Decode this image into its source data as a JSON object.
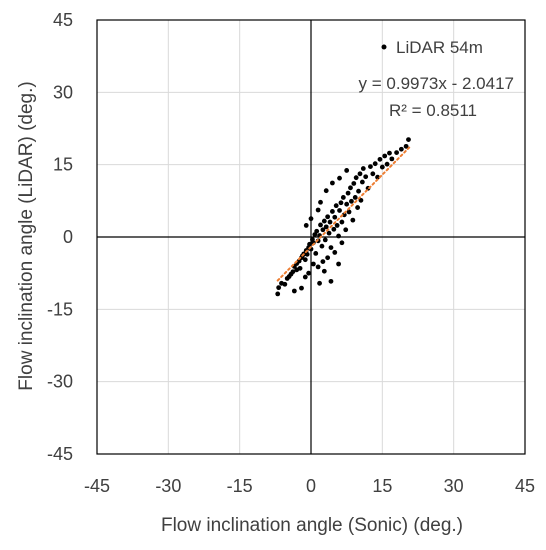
{
  "chart_data": {
    "type": "scatter",
    "title": "",
    "xlabel": "Flow inclination angle (Sonic) (deg.)",
    "ylabel": "Flow inclination angle (LiDAR) (deg.)",
    "xlim": [
      -45,
      45
    ],
    "ylim": [
      -45,
      45
    ],
    "xticks": [
      -45,
      -30,
      -15,
      0,
      15,
      30,
      45
    ],
    "yticks": [
      -45,
      -30,
      -15,
      0,
      15,
      30,
      45
    ],
    "grid": true,
    "legend_position": "top-right",
    "series": [
      {
        "name": "LiDAR 54m",
        "color": "#000000",
        "points": [
          [
            -7,
            -11.8
          ],
          [
            -6.8,
            -10.5
          ],
          [
            -6.2,
            -9.6
          ],
          [
            -5.5,
            -9.8
          ],
          [
            -5,
            -8.6
          ],
          [
            -4.6,
            -8.2
          ],
          [
            -4.2,
            -7.7
          ],
          [
            -3.8,
            -7.2
          ],
          [
            -3.5,
            -6.1
          ],
          [
            -3,
            -6.8
          ],
          [
            -3,
            -5.5
          ],
          [
            -2.5,
            -5
          ],
          [
            -2.3,
            -6.5
          ],
          [
            -2,
            -4.3
          ],
          [
            -1.8,
            -3.9
          ],
          [
            -1.5,
            -3.5
          ],
          [
            -1.2,
            -4.7
          ],
          [
            -1,
            -2.8
          ],
          [
            -0.8,
            -3.6
          ],
          [
            -0.5,
            -2.2
          ],
          [
            -0.3,
            -1.5
          ],
          [
            0,
            -2.5
          ],
          [
            0.3,
            -0.5
          ],
          [
            0.5,
            -1.2
          ],
          [
            0.8,
            0.5
          ],
          [
            1,
            -3.4
          ],
          [
            1.2,
            1.2
          ],
          [
            1.5,
            -0.8
          ],
          [
            1.8,
            0.3
          ],
          [
            2,
            2.5
          ],
          [
            2.3,
            -1.9
          ],
          [
            2.5,
            1.5
          ],
          [
            2.8,
            3.3
          ],
          [
            3,
            -0.6
          ],
          [
            3.2,
            2.1
          ],
          [
            3.5,
            4.2
          ],
          [
            3.8,
            0.8
          ],
          [
            4,
            3.1
          ],
          [
            4.2,
            -2.2
          ],
          [
            4.5,
            5.3
          ],
          [
            4.8,
            1.6
          ],
          [
            5,
            4.1
          ],
          [
            5.3,
            6.5
          ],
          [
            5.5,
            2.4
          ],
          [
            5.8,
            0.2
          ],
          [
            6,
            5.5
          ],
          [
            6.3,
            7.1
          ],
          [
            6.5,
            3.1
          ],
          [
            6.8,
            8.2
          ],
          [
            7,
            4.6
          ],
          [
            7.3,
            1.5
          ],
          [
            7.5,
            6.8
          ],
          [
            7.8,
            9.1
          ],
          [
            8,
            5.2
          ],
          [
            8.3,
            10.2
          ],
          [
            8.5,
            7.4
          ],
          [
            8.8,
            3.5
          ],
          [
            9,
            11.1
          ],
          [
            9.3,
            8.2
          ],
          [
            9.5,
            12.3
          ],
          [
            9.8,
            6.1
          ],
          [
            10,
            9.5
          ],
          [
            10.3,
            13.1
          ],
          [
            10.5,
            7.6
          ],
          [
            10.8,
            11.4
          ],
          [
            11,
            14.2
          ],
          [
            11.5,
            12.5
          ],
          [
            12,
            10.1
          ],
          [
            12.5,
            14.6
          ],
          [
            13,
            13.1
          ],
          [
            13.5,
            15.2
          ],
          [
            14,
            12.4
          ],
          [
            14.5,
            16.1
          ],
          [
            15,
            14.5
          ],
          [
            15.5,
            16.8
          ],
          [
            16,
            15.1
          ],
          [
            16.5,
            17.4
          ],
          [
            17,
            16.2
          ],
          [
            18,
            17.5
          ],
          [
            19,
            18.2
          ],
          [
            20,
            18.8
          ],
          [
            20.5,
            20.2
          ],
          [
            0.5,
            -5.6
          ],
          [
            1.5,
            -6.2
          ],
          [
            2.5,
            -5.1
          ],
          [
            3.5,
            -4.3
          ],
          [
            5,
            -3.2
          ],
          [
            6.5,
            -1.2
          ],
          [
            -3.5,
            -11.2
          ],
          [
            -2,
            -10.6
          ],
          [
            -1.2,
            -8.3
          ],
          [
            1.8,
            -9.6
          ],
          [
            -0.5,
            -7.5
          ],
          [
            2.8,
            -7.1
          ],
          [
            4.2,
            -9.2
          ],
          [
            5.8,
            -5.6
          ],
          [
            3.2,
            9.6
          ],
          [
            4.5,
            11.2
          ],
          [
            6,
            12.2
          ],
          [
            7.5,
            13.8
          ],
          [
            -1,
            2.4
          ],
          [
            0,
            3.8
          ],
          [
            1.5,
            5.6
          ],
          [
            2,
            7.2
          ]
        ]
      }
    ],
    "trendline": {
      "equation": "y = 0.9973x - 2.0417",
      "r_squared": "R² = 0.8511",
      "slope": 0.9973,
      "intercept": -2.0417,
      "x_range": [
        -7,
        21
      ],
      "color": "#ED7D31",
      "style": "dotted"
    }
  }
}
